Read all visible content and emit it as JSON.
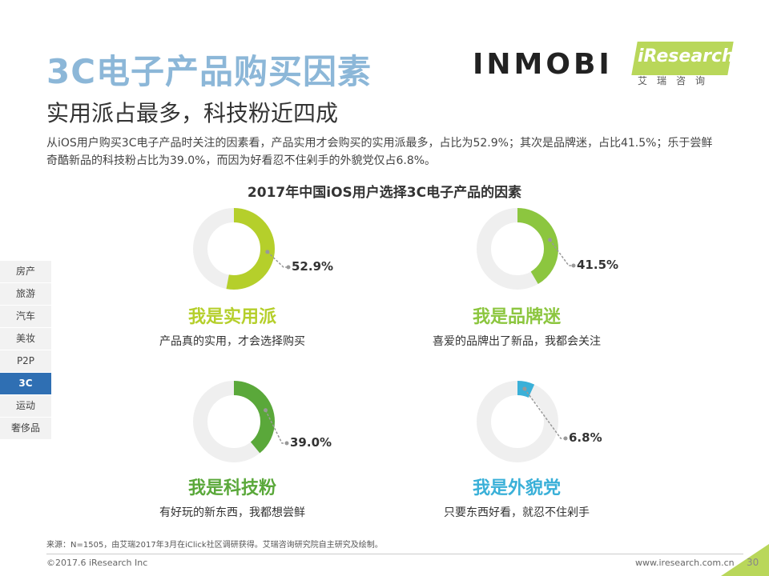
{
  "header": {
    "title": "3C电子产品购买因素",
    "subtitle": "实用派占最多，科技粉近四成",
    "description": "从iOS用户购买3C电子产品时关注的因素看，产品实用才会购买的实用派最多，占比为52.9%；其次是品牌迷，占比41.5%；乐于尝鲜奇酷新品的科技粉占比为39.0%，而因为好看忍不住剁手的外貌党仅占6.8%。"
  },
  "logos": {
    "inmobi": "INMOBI",
    "iresearch": "iResearch",
    "iresearch_cn": "艾瑞咨询"
  },
  "sidenav": {
    "items": [
      "房产",
      "旅游",
      "汽车",
      "美妆",
      "P2P",
      "3C",
      "运动",
      "奢侈品"
    ],
    "active": "3C"
  },
  "chart_data": {
    "type": "pie",
    "title": "2017年中国iOS用户选择3C电子产品的因素",
    "series": [
      {
        "name": "我是实用派",
        "value": 52.9,
        "label": "52.9%",
        "description": "产品真的实用，才会选择购买",
        "color": "#b5cf2b"
      },
      {
        "name": "我是品牌迷",
        "value": 41.5,
        "label": "41.5%",
        "description": "喜爱的品牌出了新品，我都会关注",
        "color": "#8cc63f"
      },
      {
        "name": "我是科技粉",
        "value": 39.0,
        "label": "39.0%",
        "description": "有好玩的新东西，我都想尝鲜",
        "color": "#5aa83a"
      },
      {
        "name": "我是外貌党",
        "value": 6.8,
        "label": "6.8%",
        "description": "只要东西好看，就忍不住剁手",
        "color": "#3ab0d8"
      }
    ],
    "remainder_color": "#efefef"
  },
  "footer": {
    "source": "来源：N=1505，由艾瑞2017年3月在iClick社区调研获得。艾瑞咨询研究院自主研究及绘制。",
    "copyright": "©2017.6 iResearch Inc",
    "website": "www.iresearch.com.cn",
    "page": "30"
  }
}
